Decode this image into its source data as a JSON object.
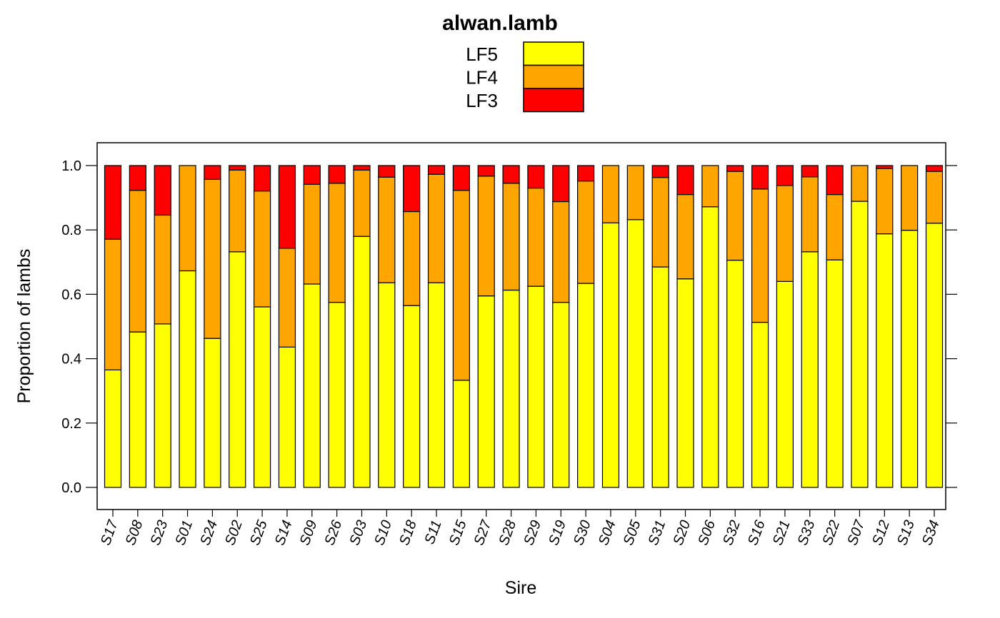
{
  "chart_data": {
    "type": "bar",
    "stacked": true,
    "title": "alwan.lamb",
    "xlabel": "Sire",
    "ylabel": "Proportion of lambs",
    "ylim": [
      -0.06,
      1.07
    ],
    "yticks": [
      0.0,
      0.2,
      0.4,
      0.6,
      0.8,
      1.0
    ],
    "ytick_labels": [
      "0.0",
      "0.2",
      "0.4",
      "0.6",
      "0.8",
      "1.0"
    ],
    "legend_position": "top",
    "categories": [
      "S17",
      "S08",
      "S23",
      "S01",
      "S24",
      "S02",
      "S25",
      "S14",
      "S09",
      "S26",
      "S03",
      "S10",
      "S18",
      "S11",
      "S15",
      "S27",
      "S28",
      "S29",
      "S19",
      "S30",
      "S04",
      "S05",
      "S31",
      "S20",
      "S06",
      "S32",
      "S16",
      "S21",
      "S33",
      "S22",
      "S07",
      "S12",
      "S13",
      "S34"
    ],
    "series": [
      {
        "name": "LF5",
        "color": "#FFFF00",
        "values": [
          0.365,
          0.483,
          0.508,
          0.673,
          0.463,
          0.732,
          0.561,
          0.436,
          0.632,
          0.575,
          0.78,
          0.636,
          0.565,
          0.636,
          0.333,
          0.595,
          0.613,
          0.625,
          0.575,
          0.634,
          0.822,
          0.832,
          0.685,
          0.648,
          0.872,
          0.706,
          0.513,
          0.64,
          0.732,
          0.707,
          0.889,
          0.788,
          0.799,
          0.821
        ]
      },
      {
        "name": "LF4",
        "color": "#FFA500",
        "values": [
          0.406,
          0.44,
          0.338,
          0.327,
          0.494,
          0.254,
          0.36,
          0.307,
          0.31,
          0.37,
          0.206,
          0.328,
          0.292,
          0.337,
          0.59,
          0.372,
          0.332,
          0.305,
          0.313,
          0.318,
          0.178,
          0.168,
          0.278,
          0.262,
          0.128,
          0.276,
          0.414,
          0.298,
          0.233,
          0.203,
          0.111,
          0.203,
          0.201,
          0.161
        ]
      },
      {
        "name": "LF3",
        "color": "#FF0000",
        "values": [
          0.229,
          0.077,
          0.154,
          0.0,
          0.043,
          0.014,
          0.079,
          0.257,
          0.058,
          0.055,
          0.014,
          0.036,
          0.143,
          0.027,
          0.077,
          0.033,
          0.055,
          0.07,
          0.112,
          0.048,
          0.0,
          0.0,
          0.037,
          0.09,
          0.0,
          0.018,
          0.073,
          0.062,
          0.035,
          0.09,
          0.0,
          0.009,
          0.0,
          0.018
        ]
      }
    ],
    "legend": [
      {
        "label": "LF5",
        "color": "#FFFF00"
      },
      {
        "label": "LF4",
        "color": "#FFA500"
      },
      {
        "label": "LF3",
        "color": "#FF0000"
      }
    ]
  }
}
